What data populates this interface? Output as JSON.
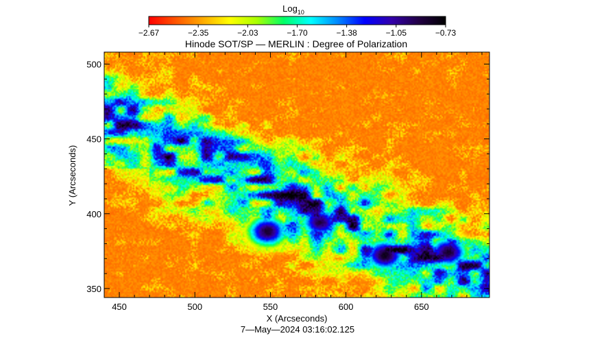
{
  "chart_data": {
    "type": "heatmap",
    "title": "Hinode SOT/SP — MERLIN : Degree of Polarization",
    "xlabel": "X (Arcseconds)",
    "ylabel": "Y (Arcseconds)",
    "timestamp": "7—May—2024 03:16:02.125",
    "colorbar": {
      "label": "Log",
      "label_sub": "10",
      "range": [
        -2.67,
        -0.73
      ],
      "ticks": [
        "−2.67",
        "−2.35",
        "−2.03",
        "−1.70",
        "−1.38",
        "−1.05",
        "−0.73"
      ],
      "colors": [
        "#ff0000",
        "#ff5500",
        "#ffaa00",
        "#ffff00",
        "#aaff00",
        "#00ff66",
        "#00ffff",
        "#0088ff",
        "#0000ff",
        "#3300aa",
        "#220044",
        "#000000"
      ]
    },
    "xlim": [
      440,
      695
    ],
    "ylim": [
      344,
      508
    ],
    "xticks": [
      450,
      500,
      550,
      600,
      650
    ],
    "yticks": [
      350,
      400,
      450,
      500
    ],
    "features": [
      {
        "name": "sunspot-umbra-1",
        "x": 548,
        "y": 388,
        "value": -0.85
      },
      {
        "name": "sunspot-umbra-2",
        "x": 583,
        "y": 394,
        "value": -0.9
      },
      {
        "name": "sunspot-umbra-3",
        "x": 626,
        "y": 372,
        "value": -0.8
      },
      {
        "name": "sunspot-umbra-4",
        "x": 668,
        "y": 374,
        "value": -0.85
      },
      {
        "name": "plage-band",
        "x": 520,
        "y": 430,
        "value": -1.6
      }
    ],
    "background_value": -2.5
  }
}
